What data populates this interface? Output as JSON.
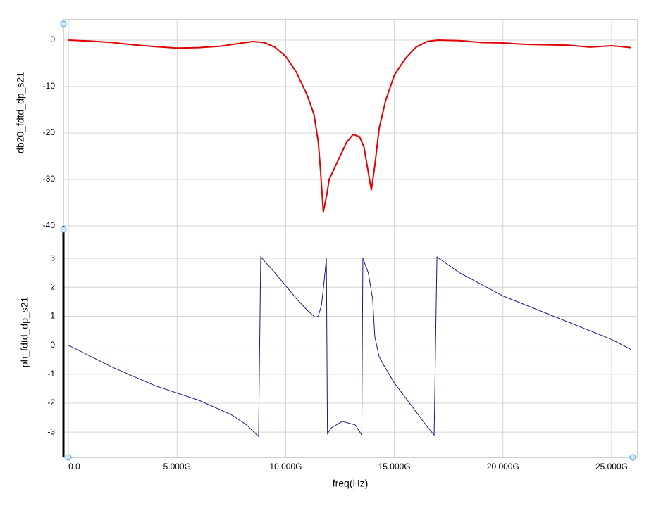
{
  "chart_data": [
    {
      "type": "line",
      "ylabel": "db20_fdtd_dp_s21",
      "color": "#e00000",
      "grid": true,
      "xlim": [
        -230000000.0,
        26200000000.0
      ],
      "ylim": [
        -40,
        4.4
      ],
      "yticks": [
        0,
        -10,
        -20,
        -30,
        -40
      ],
      "x": [
        0,
        1000000000.0,
        2000000000.0,
        3000000000.0,
        4000000000.0,
        5000000000.0,
        6000000000.0,
        7000000000.0,
        8000000000.0,
        8500000000.0,
        9000000000.0,
        9500000000.0,
        10000000000.0,
        10500000000.0,
        11000000000.0,
        11300000000.0,
        11500000000.0,
        11600000000.0,
        11730000000.0,
        11900000000.0,
        12000000000.0,
        12400000000.0,
        12800000000.0,
        13100000000.0,
        13400000000.0,
        13600000000.0,
        13940000000.0,
        14100000000.0,
        14300000000.0,
        14600000000.0,
        15000000000.0,
        15500000000.0,
        16000000000.0,
        16500000000.0,
        17000000000.0,
        18000000000.0,
        19000000000.0,
        20000000000.0,
        21000000000.0,
        22000000000.0,
        23000000000.0,
        24000000000.0,
        25000000000.0,
        25900000000.0
      ],
      "values": [
        0,
        -0.2,
        -0.5,
        -1,
        -1.4,
        -1.7,
        -1.6,
        -1.3,
        -0.6,
        -0.3,
        -0.5,
        -1.5,
        -3.5,
        -7,
        -12,
        -16,
        -22,
        -28,
        -37,
        -33,
        -30,
        -26,
        -22,
        -20.3,
        -20.8,
        -23,
        -32.3,
        -27,
        -19,
        -13,
        -7.5,
        -4,
        -1.5,
        -0.3,
        0,
        -0.1,
        -0.5,
        -0.6,
        -0.9,
        -1,
        -1.1,
        -1.5,
        -1.2,
        -1.6
      ]
    },
    {
      "type": "line",
      "ylabel": "ph_fdtd_dp_s21",
      "xlabel": "freq(Hz)",
      "color": "#1a1a80",
      "grid": true,
      "xlim": [
        -230000000.0,
        26200000000.0
      ],
      "ylim": [
        -3.87,
        4.12
      ],
      "yticks": [
        3,
        2,
        1,
        0,
        -1,
        -2,
        -3
      ],
      "xticks": [
        {
          "value": 0,
          "label": "0.0"
        },
        {
          "value": 5000000000.0,
          "label": "5.000G"
        },
        {
          "value": 10000000000.0,
          "label": "10.000G"
        },
        {
          "value": 15000000000.0,
          "label": "15.000G"
        },
        {
          "value": 20000000000.0,
          "label": "20.000G"
        },
        {
          "value": 25000000000.0,
          "label": "25.000G"
        }
      ],
      "x": [
        0,
        2000000000.0,
        4000000000.0,
        6000000000.0,
        7500000000.0,
        8200000000.0,
        8750000000.0,
        8850000000.0,
        9500000000.0,
        10000000000.0,
        10500000000.0,
        11000000000.0,
        11350000000.0,
        11500000000.0,
        11650000000.0,
        11780000000.0,
        11870000000.0,
        11920000000.0,
        12100000000.0,
        12600000000.0,
        13200000000.0,
        13500000000.0,
        13550000000.0,
        13800000000.0,
        14000000000.0,
        14100000000.0,
        14300000000.0,
        14600000000.0,
        15000000000.0,
        15500000000.0,
        16000000000.0,
        16500000000.0,
        16830000000.0,
        16960000000.0,
        18000000000.0,
        20000000000.0,
        22000000000.0,
        24000000000.0,
        25000000000.0,
        25900000000.0
      ],
      "values": [
        0,
        -0.75,
        -1.4,
        -1.9,
        -2.4,
        -2.75,
        -3.15,
        3.05,
        2.5,
        2.05,
        1.6,
        1.2,
        0.97,
        1.0,
        1.4,
        2.3,
        3.0,
        -3.05,
        -2.85,
        -2.63,
        -2.75,
        -3.1,
        3.0,
        2.5,
        1.6,
        0.3,
        -0.4,
        -0.8,
        -1.3,
        -1.8,
        -2.3,
        -2.8,
        -3.1,
        3.05,
        2.5,
        1.7,
        1.1,
        0.5,
        0.2,
        -0.15
      ]
    }
  ]
}
